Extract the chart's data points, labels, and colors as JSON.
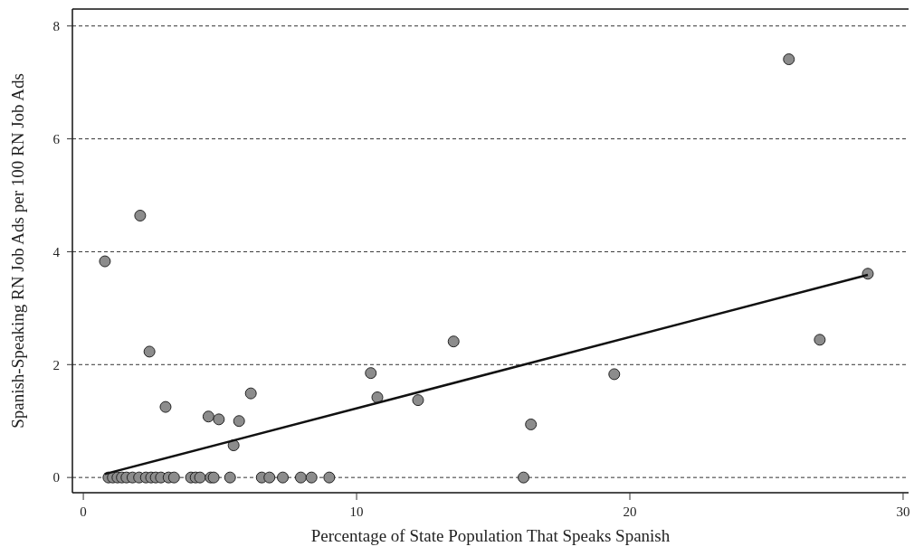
{
  "chart_data": {
    "type": "scatter",
    "xlabel": "Percentage of State Population That Speaks Spanish",
    "ylabel": "Spanish-Speaking RN Job Ads per 100 RN Job Ads",
    "xlim": [
      -0.4,
      30.2
    ],
    "ylim": [
      -0.27,
      8.3
    ],
    "xticks": [
      0,
      10,
      20,
      30
    ],
    "yticks": [
      0,
      2,
      4,
      6,
      8
    ],
    "grid": "y",
    "marker": "circle",
    "series": [
      {
        "color": "#8c8c8c",
        "x": [
          0.92,
          1.08,
          1.25,
          1.41,
          1.58,
          1.8,
          2.04,
          2.29,
          2.48,
          2.65,
          2.84,
          3.12,
          3.32,
          3.94,
          4.11,
          4.27,
          4.66,
          4.77,
          5.37,
          6.53,
          6.81,
          7.3,
          7.96,
          8.35,
          9.0,
          16.11,
          0.79,
          2.08,
          2.42,
          3.01,
          4.58,
          4.96,
          5.5,
          5.7,
          6.13,
          10.52,
          10.76,
          12.25,
          13.55,
          16.38,
          19.43,
          25.82,
          26.95,
          28.71
        ],
        "values": [
          0,
          0,
          0,
          0,
          0,
          0,
          0,
          0,
          0,
          0,
          0,
          0,
          0,
          0,
          0,
          0,
          0,
          0,
          0,
          0,
          0,
          0,
          0,
          0,
          0,
          0,
          3.83,
          4.64,
          2.23,
          1.25,
          1.08,
          1.03,
          0.57,
          1.0,
          1.49,
          1.85,
          1.42,
          1.37,
          2.41,
          0.94,
          1.83,
          7.41,
          2.44,
          3.61
        ]
      },
      {
        "type": "line",
        "color": "#111111",
        "line_style": "solid",
        "marker": "none",
        "x": [
          0.78,
          28.71
        ],
        "values": [
          0.06,
          3.59
        ]
      }
    ]
  }
}
